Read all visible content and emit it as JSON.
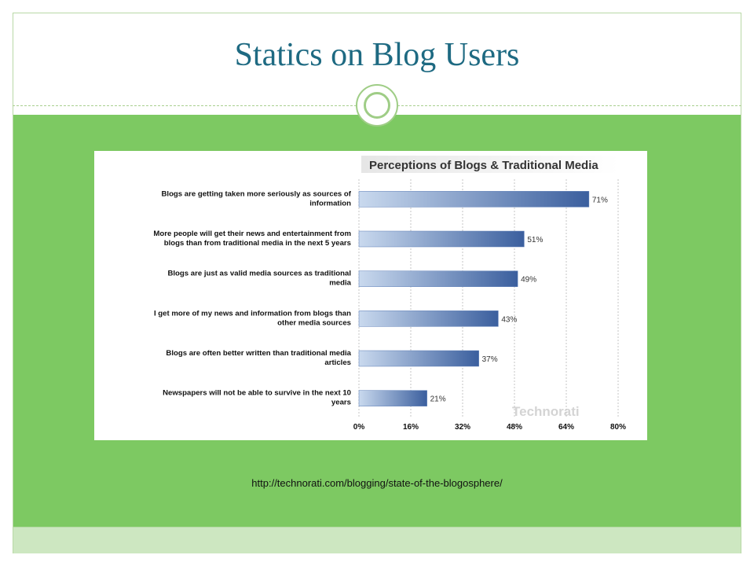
{
  "slide": {
    "title": "Statics on Blog Users",
    "source_url": "http://technorati.com/blogging/state-of-the-blogosphere/"
  },
  "colors": {
    "title": "#1e6a82",
    "panel": "#7dc962",
    "band": "#cde7c1",
    "bar_start": "#c9d9ee",
    "bar_end": "#3b5f9e"
  },
  "chart_data": {
    "type": "bar",
    "orientation": "horizontal",
    "title": "Perceptions of Blogs & Traditional Media",
    "categories": [
      [
        "Blogs are getting taken more seriously as sources of",
        "information"
      ],
      [
        "More people will get their news and entertainment from",
        "blogs than from traditional media in the next 5 years"
      ],
      [
        "Blogs are just as valid media sources as traditional",
        "media"
      ],
      [
        "I get more of my news and information from blogs than",
        "other media sources"
      ],
      [
        "Blogs are often better written than traditional media",
        "articles"
      ],
      [
        "Newspapers will not be able to survive in the next 10",
        "years"
      ]
    ],
    "values": [
      71,
      51,
      49,
      43,
      37,
      21
    ],
    "value_labels": [
      "71%",
      "51%",
      "49%",
      "43%",
      "37%",
      "21%"
    ],
    "xlim": [
      0,
      80
    ],
    "ticks": [
      "0%",
      "16%",
      "32%",
      "48%",
      "64%",
      "80%"
    ],
    "grid": true,
    "watermark": "Technorati"
  }
}
